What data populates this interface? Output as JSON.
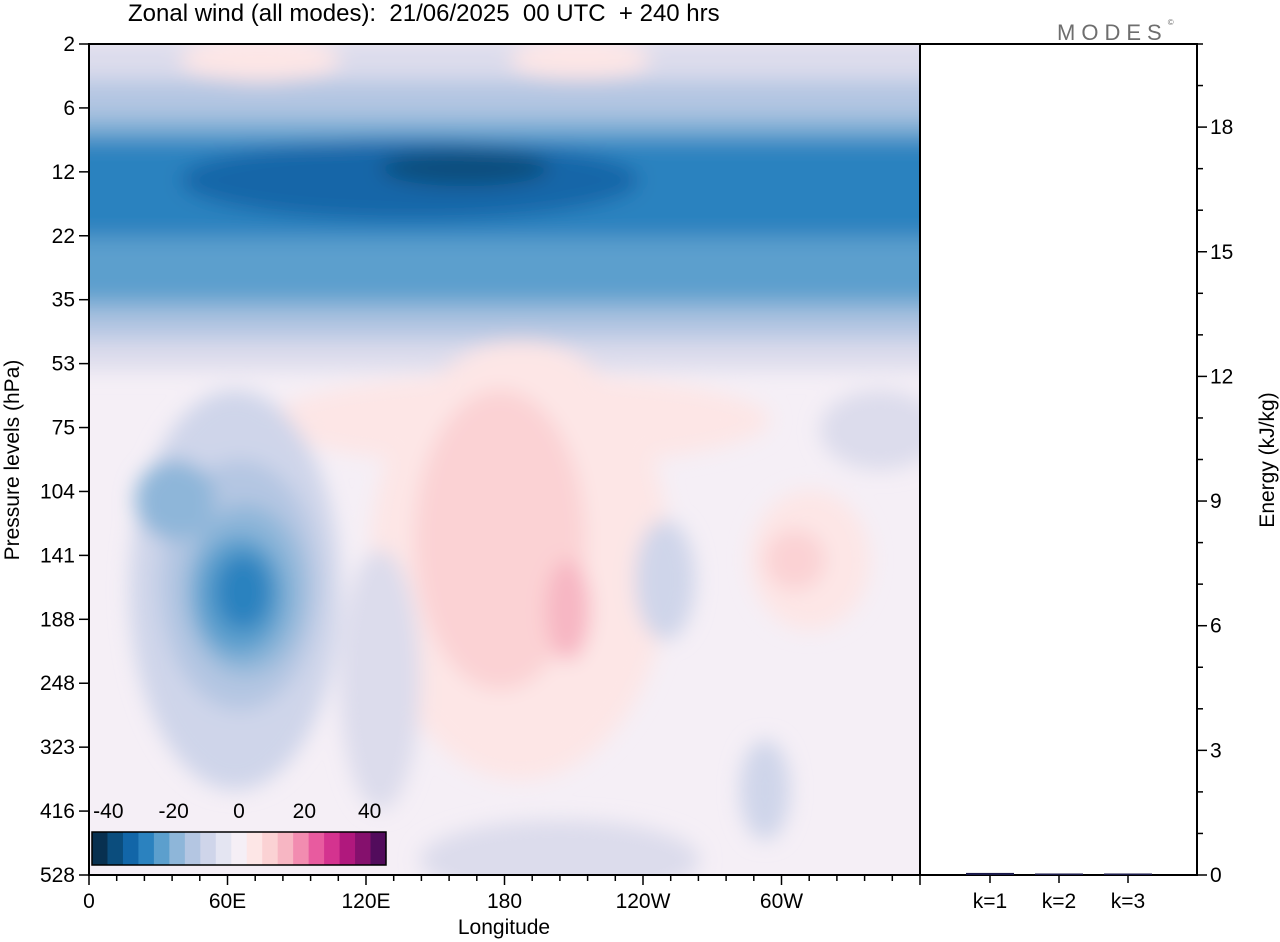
{
  "title": "Zonal wind (all modes):  21/06/2025  00 UTC  + 240 hrs",
  "brand": "MODES",
  "brand_mark": "©",
  "chart_data": [
    {
      "type": "heatmap",
      "title": "Zonal wind (all modes):  21/06/2025  00 UTC  + 240 hrs",
      "xlabel": "Longitude",
      "ylabel": "Pressure levels (hPa)",
      "x_tick_labels": [
        "0",
        "60E",
        "120E",
        "180",
        "120W",
        "60W"
      ],
      "x_range_deg_east": [
        0,
        360
      ],
      "x_tick_positions_deg_east": [
        0,
        60,
        120,
        180,
        240,
        300
      ],
      "y_tick_labels": [
        "2",
        "6",
        "12",
        "22",
        "35",
        "53",
        "75",
        "104",
        "141",
        "188",
        "248",
        "323",
        "416",
        "528"
      ],
      "y_scale": "log",
      "y_reversed": true,
      "colorbar": {
        "tick_labels": [
          "-40",
          "-20",
          "0",
          "20",
          "40"
        ],
        "range": [
          -45,
          45
        ],
        "placement": "bottom-left inside plot",
        "colors": [
          "#083050",
          "#0b4d7d",
          "#1266a8",
          "#2b82bf",
          "#5c9fcd",
          "#8eb6d9",
          "#b4c6e2",
          "#cfd5ea",
          "#e4e5f2",
          "#f5eff6",
          "#fde6e6",
          "#fbd2d4",
          "#f7b6c3",
          "#f28cb0",
          "#e85b9f",
          "#d4338f",
          "#b0187d",
          "#85106d",
          "#520c5c"
        ]
      },
      "features": [
        {
          "name": "upper easterly band",
          "lon": [
            0,
            360
          ],
          "pressure_hpa": [
            8,
            40
          ],
          "min_value": -35
        },
        {
          "name": "easterly core",
          "lon": [
            60,
            85
          ],
          "pressure_hpa": [
            110,
            230
          ],
          "min_value": -35
        },
        {
          "name": "westerly maximum",
          "lon": [
            175,
            215
          ],
          "pressure_hpa": [
            90,
            220
          ],
          "max_value": 10
        }
      ]
    },
    {
      "type": "bar",
      "ylabel": "Energy (kJ/kg)",
      "ylim": [
        0,
        20
      ],
      "y_tick_labels": [
        "0",
        "3",
        "6",
        "9",
        "12",
        "15",
        "18"
      ],
      "categories": [
        "k=1",
        "k=2",
        "k=3"
      ],
      "values": [
        0.05,
        0.03,
        0.01
      ]
    }
  ]
}
